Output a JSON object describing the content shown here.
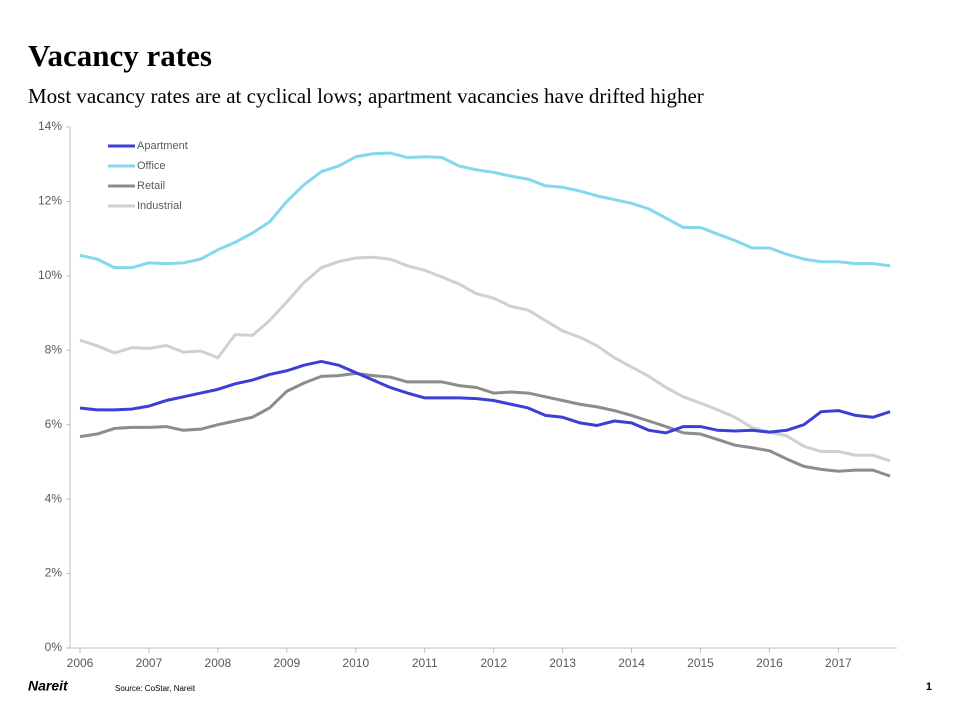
{
  "chart_data": {
    "type": "line",
    "title": "Vacancy rates",
    "subtitle": "Most vacancy rates are at cyclical lows; apartment vacancies have drifted higher",
    "source": "Source: CoStar, Nareit",
    "logo": "Nareit",
    "page_number": "1",
    "x": [
      2006,
      2006.25,
      2006.5,
      2006.75,
      2007,
      2007.25,
      2007.5,
      2007.75,
      2008,
      2008.25,
      2008.5,
      2008.75,
      2009,
      2009.25,
      2009.5,
      2009.75,
      2010,
      2010.25,
      2010.5,
      2010.75,
      2011,
      2011.25,
      2011.5,
      2011.75,
      2012,
      2012.25,
      2012.5,
      2012.75,
      2013,
      2013.25,
      2013.5,
      2013.75,
      2014,
      2014.25,
      2014.5,
      2014.75,
      2015,
      2015.25,
      2015.5,
      2015.75,
      2016,
      2016.25,
      2016.5,
      2016.75,
      2017,
      2017.25,
      2017.5,
      2017.75
    ],
    "xlim": [
      2006,
      2017.85
    ],
    "xticks": [
      2006,
      2007,
      2008,
      2009,
      2010,
      2011,
      2012,
      2013,
      2014,
      2015,
      2016,
      2017
    ],
    "ylim": [
      0,
      14
    ],
    "yticks": [
      {
        "value": 0,
        "label": "0%"
      },
      {
        "value": 2,
        "label": "2%"
      },
      {
        "value": 4,
        "label": "4%"
      },
      {
        "value": 6,
        "label": "6%"
      },
      {
        "value": 8,
        "label": "8%"
      },
      {
        "value": 10,
        "label": "10%"
      },
      {
        "value": 12,
        "label": "12%"
      },
      {
        "value": 14,
        "label": "14%"
      }
    ],
    "grid": false,
    "legend": "top-left",
    "series": [
      {
        "name": "Apartment",
        "color": "#3b3fd6",
        "values": [
          6.45,
          6.4,
          6.4,
          6.42,
          6.5,
          6.65,
          6.75,
          6.85,
          6.95,
          7.1,
          7.2,
          7.35,
          7.45,
          7.6,
          7.7,
          7.6,
          7.4,
          7.2,
          7.0,
          6.85,
          6.72,
          6.72,
          6.72,
          6.7,
          6.65,
          6.55,
          6.45,
          6.25,
          6.2,
          6.05,
          5.98,
          6.1,
          6.05,
          5.85,
          5.78,
          5.95,
          5.95,
          5.85,
          5.83,
          5.85,
          5.8,
          5.85,
          6.0,
          6.35,
          6.38,
          6.25,
          6.2,
          6.35
        ]
      },
      {
        "name": "Office",
        "color": "#84d8ec",
        "values": [
          10.55,
          10.45,
          10.22,
          10.22,
          10.35,
          10.33,
          10.35,
          10.45,
          10.7,
          10.9,
          11.15,
          11.45,
          12.0,
          12.45,
          12.8,
          12.95,
          13.2,
          13.28,
          13.3,
          13.18,
          13.2,
          13.18,
          12.95,
          12.85,
          12.78,
          12.68,
          12.6,
          12.42,
          12.38,
          12.28,
          12.15,
          12.05,
          11.95,
          11.8,
          11.55,
          11.3,
          11.3,
          11.12,
          10.95,
          10.75,
          10.75,
          10.58,
          10.45,
          10.38,
          10.38,
          10.33,
          10.33,
          10.27
        ]
      },
      {
        "name": "Retail",
        "color": "#8c8c8c",
        "values": [
          5.68,
          5.75,
          5.9,
          5.93,
          5.93,
          5.95,
          5.85,
          5.88,
          6.0,
          6.1,
          6.2,
          6.45,
          6.9,
          7.12,
          7.3,
          7.32,
          7.38,
          7.32,
          7.28,
          7.15,
          7.15,
          7.15,
          7.05,
          7.0,
          6.85,
          6.88,
          6.85,
          6.75,
          6.65,
          6.55,
          6.48,
          6.38,
          6.25,
          6.1,
          5.95,
          5.78,
          5.75,
          5.6,
          5.45,
          5.38,
          5.3,
          5.08,
          4.88,
          4.8,
          4.75,
          4.78,
          4.78,
          4.62
        ]
      },
      {
        "name": "Industrial",
        "color": "#d0d0d0",
        "values": [
          8.27,
          8.12,
          7.93,
          8.07,
          8.05,
          8.13,
          7.95,
          7.98,
          7.8,
          8.42,
          8.4,
          8.8,
          9.3,
          9.82,
          10.22,
          10.38,
          10.48,
          10.5,
          10.45,
          10.27,
          10.15,
          9.97,
          9.78,
          9.52,
          9.4,
          9.18,
          9.08,
          8.8,
          8.52,
          8.35,
          8.12,
          7.8,
          7.55,
          7.3,
          7.0,
          6.75,
          6.58,
          6.4,
          6.2,
          5.92,
          5.8,
          5.7,
          5.42,
          5.28,
          5.28,
          5.18,
          5.18,
          5.03
        ]
      }
    ]
  }
}
